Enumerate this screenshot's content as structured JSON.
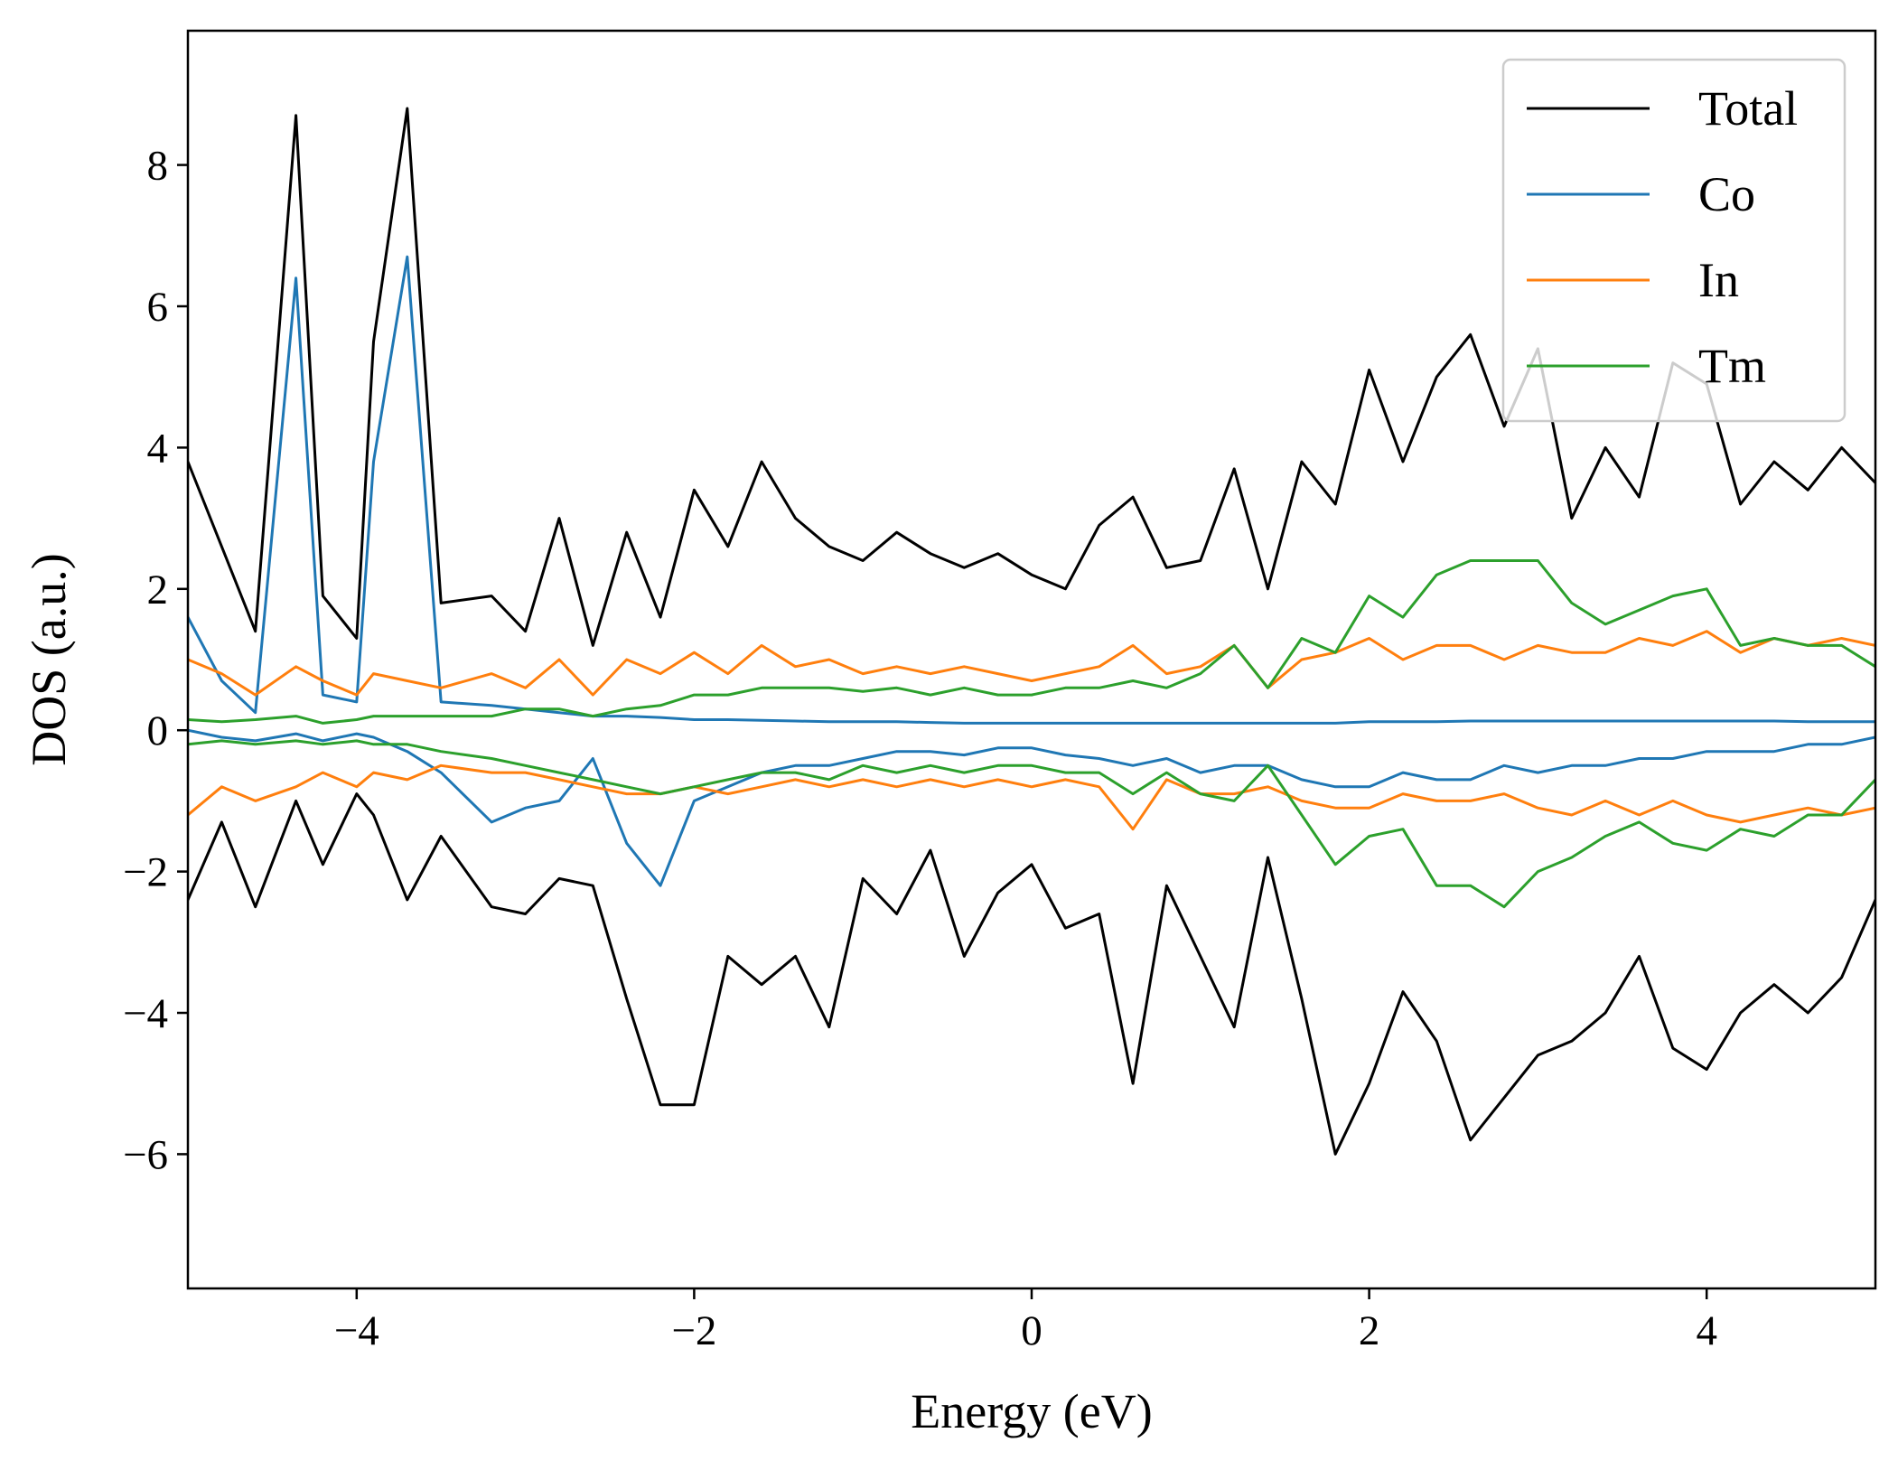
{
  "chart_data": {
    "type": "line",
    "xlabel": "Energy (eV)",
    "ylabel": "DOS (a.u.)",
    "xlim": [
      -5,
      5
    ],
    "ylim": [
      -7.9,
      9.9
    ],
    "xticks": [
      -4,
      -2,
      0,
      2,
      4
    ],
    "yticks": [
      -6,
      -4,
      -2,
      0,
      2,
      4,
      6,
      8
    ],
    "xtick_labels": [
      "−4",
      "−2",
      "0",
      "2",
      "4"
    ],
    "ytick_labels": [
      "−6",
      "−4",
      "−2",
      "0",
      "2",
      "4",
      "6",
      "8"
    ],
    "grid": false,
    "legend_position": "top-right",
    "x": [
      -5.0,
      -4.8,
      -4.6,
      -4.36,
      -4.2,
      -4.0,
      -3.9,
      -3.7,
      -3.5,
      -3.2,
      -3.0,
      -2.8,
      -2.6,
      -2.4,
      -2.2,
      -2.0,
      -1.8,
      -1.6,
      -1.4,
      -1.2,
      -1.0,
      -0.8,
      -0.6,
      -0.4,
      -0.2,
      0.0,
      0.2,
      0.4,
      0.6,
      0.8,
      1.0,
      1.2,
      1.4,
      1.6,
      1.8,
      2.0,
      2.2,
      2.4,
      2.6,
      2.8,
      3.0,
      3.2,
      3.4,
      3.6,
      3.8,
      4.0,
      4.2,
      4.4,
      4.6,
      4.8,
      5.0
    ],
    "series": [
      {
        "name": "Total",
        "color": "#000000",
        "values_up": [
          3.8,
          2.6,
          1.4,
          8.7,
          1.9,
          1.3,
          5.5,
          8.8,
          1.8,
          1.9,
          1.4,
          3.0,
          1.2,
          2.8,
          1.6,
          3.4,
          2.6,
          3.8,
          3.0,
          2.6,
          2.4,
          2.8,
          2.5,
          2.3,
          2.5,
          2.2,
          2.0,
          2.9,
          3.3,
          2.3,
          2.4,
          3.7,
          2.0,
          3.8,
          3.2,
          5.1,
          3.8,
          5.0,
          5.6,
          4.3,
          5.4,
          3.0,
          4.0,
          3.3,
          5.2,
          4.9,
          3.2,
          3.8,
          3.4,
          4.0,
          3.5
        ],
        "values_down": [
          -2.4,
          -1.3,
          -2.5,
          -1.0,
          -1.9,
          -0.9,
          -1.2,
          -2.4,
          -1.5,
          -2.5,
          -2.6,
          -2.1,
          -2.2,
          -3.8,
          -5.3,
          -5.3,
          -3.2,
          -3.6,
          -3.2,
          -4.2,
          -2.1,
          -2.6,
          -1.7,
          -3.2,
          -2.3,
          -1.9,
          -2.8,
          -2.6,
          -5.0,
          -2.2,
          -3.2,
          -4.2,
          -1.8,
          -3.8,
          -6.0,
          -5.0,
          -3.7,
          -4.4,
          -5.8,
          -5.2,
          -4.6,
          -4.4,
          -4.0,
          -3.2,
          -4.5,
          -4.8,
          -4.0,
          -3.6,
          -4.0,
          -3.5,
          -2.4
        ]
      },
      {
        "name": "Co",
        "color": "#1f77b4",
        "values_up": [
          1.6,
          0.7,
          0.25,
          6.4,
          0.5,
          0.4,
          3.8,
          6.7,
          0.4,
          0.35,
          0.3,
          0.25,
          0.2,
          0.2,
          0.18,
          0.15,
          0.15,
          0.14,
          0.13,
          0.12,
          0.12,
          0.12,
          0.11,
          0.1,
          0.1,
          0.1,
          0.1,
          0.1,
          0.1,
          0.1,
          0.1,
          0.1,
          0.1,
          0.1,
          0.1,
          0.12,
          0.12,
          0.12,
          0.13,
          0.13,
          0.13,
          0.13,
          0.13,
          0.13,
          0.13,
          0.13,
          0.13,
          0.13,
          0.12,
          0.12,
          0.12
        ],
        "values_down": [
          0.0,
          -0.1,
          -0.15,
          -0.05,
          -0.15,
          -0.05,
          -0.1,
          -0.3,
          -0.6,
          -1.3,
          -1.1,
          -1.0,
          -0.4,
          -1.6,
          -2.2,
          -1.0,
          -0.8,
          -0.6,
          -0.5,
          -0.5,
          -0.4,
          -0.3,
          -0.3,
          -0.35,
          -0.25,
          -0.25,
          -0.35,
          -0.4,
          -0.5,
          -0.4,
          -0.6,
          -0.5,
          -0.5,
          -0.7,
          -0.8,
          -0.8,
          -0.6,
          -0.7,
          -0.7,
          -0.5,
          -0.6,
          -0.5,
          -0.5,
          -0.4,
          -0.4,
          -0.3,
          -0.3,
          -0.3,
          -0.2,
          -0.2,
          -0.1
        ]
      },
      {
        "name": "In",
        "color": "#ff7f0e",
        "values_up": [
          1.0,
          0.8,
          0.5,
          0.9,
          0.7,
          0.5,
          0.8,
          0.7,
          0.6,
          0.8,
          0.6,
          1.0,
          0.5,
          1.0,
          0.8,
          1.1,
          0.8,
          1.2,
          0.9,
          1.0,
          0.8,
          0.9,
          0.8,
          0.9,
          0.8,
          0.7,
          0.8,
          0.9,
          1.2,
          0.8,
          0.9,
          1.2,
          0.6,
          1.0,
          1.1,
          1.3,
          1.0,
          1.2,
          1.2,
          1.0,
          1.2,
          1.1,
          1.1,
          1.3,
          1.2,
          1.4,
          1.1,
          1.3,
          1.2,
          1.3,
          1.2
        ],
        "values_down": [
          -1.2,
          -0.8,
          -1.0,
          -0.8,
          -0.6,
          -0.8,
          -0.6,
          -0.7,
          -0.5,
          -0.6,
          -0.6,
          -0.7,
          -0.8,
          -0.9,
          -0.9,
          -0.8,
          -0.9,
          -0.8,
          -0.7,
          -0.8,
          -0.7,
          -0.8,
          -0.7,
          -0.8,
          -0.7,
          -0.8,
          -0.7,
          -0.8,
          -1.4,
          -0.7,
          -0.9,
          -0.9,
          -0.8,
          -1.0,
          -1.1,
          -1.1,
          -0.9,
          -1.0,
          -1.0,
          -0.9,
          -1.1,
          -1.2,
          -1.0,
          -1.2,
          -1.0,
          -1.2,
          -1.3,
          -1.2,
          -1.1,
          -1.2,
          -1.1
        ]
      },
      {
        "name": "Tm",
        "color": "#2ca02c",
        "values_up": [
          0.15,
          0.12,
          0.15,
          0.2,
          0.1,
          0.15,
          0.2,
          0.2,
          0.2,
          0.2,
          0.3,
          0.3,
          0.2,
          0.3,
          0.35,
          0.5,
          0.5,
          0.6,
          0.6,
          0.6,
          0.55,
          0.6,
          0.5,
          0.6,
          0.5,
          0.5,
          0.6,
          0.6,
          0.7,
          0.6,
          0.8,
          1.2,
          0.6,
          1.3,
          1.1,
          1.9,
          1.6,
          2.2,
          2.4,
          2.4,
          2.4,
          1.8,
          1.5,
          1.7,
          1.9,
          2.0,
          1.2,
          1.3,
          1.2,
          1.2,
          0.9
        ],
        "values_down": [
          -0.2,
          -0.15,
          -0.2,
          -0.15,
          -0.2,
          -0.15,
          -0.2,
          -0.2,
          -0.3,
          -0.4,
          -0.5,
          -0.6,
          -0.7,
          -0.8,
          -0.9,
          -0.8,
          -0.7,
          -0.6,
          -0.6,
          -0.7,
          -0.5,
          -0.6,
          -0.5,
          -0.6,
          -0.5,
          -0.5,
          -0.6,
          -0.6,
          -0.9,
          -0.6,
          -0.9,
          -1.0,
          -0.5,
          -1.2,
          -1.9,
          -1.5,
          -1.4,
          -2.2,
          -2.2,
          -2.5,
          -2.0,
          -1.8,
          -1.5,
          -1.3,
          -1.6,
          -1.7,
          -1.4,
          -1.5,
          -1.2,
          -1.2,
          -0.7
        ]
      }
    ]
  }
}
